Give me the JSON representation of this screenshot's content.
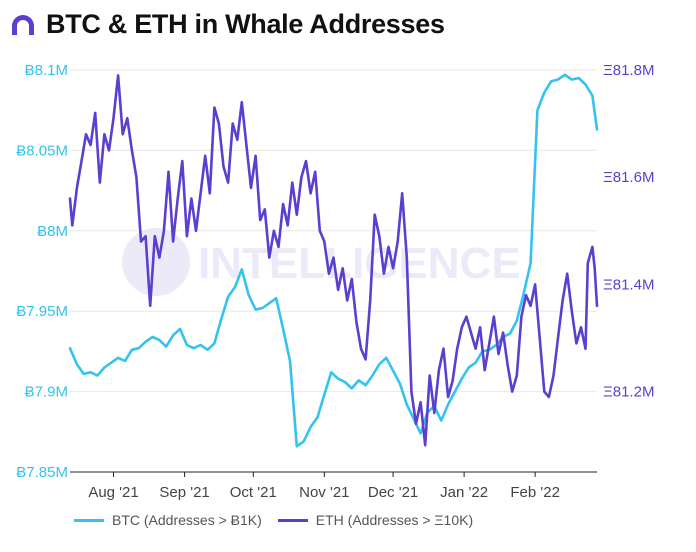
{
  "header": {
    "title": "BTC & ETH in Whale Addresses"
  },
  "colors": {
    "btc": "#33c3ee",
    "eth": "#5b3fcf",
    "grid": "#e8e8e8",
    "axis": "#222222",
    "watermark": "#eceaf8"
  },
  "watermark": "INTELLIGENCE",
  "chart_data": {
    "type": "line",
    "title": "BTC & ETH in Whale Addresses",
    "x_ticks": [
      "Aug '21",
      "Sep '21",
      "Oct '21",
      "Nov '21",
      "Dec '21",
      "Jan '22",
      "Feb '22"
    ],
    "x_range": [
      "2021-07-13",
      "2022-02-28"
    ],
    "y_left": {
      "range": [
        7.85,
        8.1
      ],
      "unit": "M",
      "prefix": "Ƀ",
      "ticks": [
        7.85,
        7.9,
        7.95,
        8.0,
        8.05,
        8.1
      ],
      "tick_labels": [
        "Ƀ7.85M",
        "Ƀ7.9M",
        "Ƀ7.95M",
        "Ƀ8M",
        "Ƀ8.05M",
        "Ƀ8.1M"
      ]
    },
    "y_right": {
      "range": [
        81.05,
        81.8
      ],
      "unit": "M",
      "prefix": "Ξ",
      "ticks": [
        81.2,
        81.4,
        81.6,
        81.8
      ],
      "tick_labels": [
        "Ξ81.2M",
        "Ξ81.4M",
        "Ξ81.6M",
        "Ξ81.8M"
      ]
    },
    "grid": "horizontal",
    "legend_position": "bottom",
    "series": [
      {
        "name": "BTC (Addresses > Ƀ1K)",
        "axis": "left",
        "points": [
          [
            "2021-07-13",
            7.927
          ],
          [
            "2021-07-16",
            7.917
          ],
          [
            "2021-07-19",
            7.911
          ],
          [
            "2021-07-22",
            7.912
          ],
          [
            "2021-07-25",
            7.91
          ],
          [
            "2021-07-28",
            7.915
          ],
          [
            "2021-07-31",
            7.918
          ],
          [
            "2021-08-03",
            7.921
          ],
          [
            "2021-08-06",
            7.919
          ],
          [
            "2021-08-09",
            7.926
          ],
          [
            "2021-08-12",
            7.927
          ],
          [
            "2021-08-15",
            7.931
          ],
          [
            "2021-08-18",
            7.934
          ],
          [
            "2021-08-21",
            7.932
          ],
          [
            "2021-08-24",
            7.928
          ],
          [
            "2021-08-27",
            7.935
          ],
          [
            "2021-08-30",
            7.939
          ],
          [
            "2021-09-02",
            7.929
          ],
          [
            "2021-09-05",
            7.927
          ],
          [
            "2021-09-08",
            7.929
          ],
          [
            "2021-09-11",
            7.926
          ],
          [
            "2021-09-14",
            7.93
          ],
          [
            "2021-09-17",
            7.945
          ],
          [
            "2021-09-20",
            7.959
          ],
          [
            "2021-09-23",
            7.965
          ],
          [
            "2021-09-26",
            7.976
          ],
          [
            "2021-09-29",
            7.96
          ],
          [
            "2021-10-02",
            7.951
          ],
          [
            "2021-10-05",
            7.952
          ],
          [
            "2021-10-08",
            7.955
          ],
          [
            "2021-10-11",
            7.958
          ],
          [
            "2021-10-14",
            7.939
          ],
          [
            "2021-10-17",
            7.919
          ],
          [
            "2021-10-20",
            7.866
          ],
          [
            "2021-10-23",
            7.869
          ],
          [
            "2021-10-26",
            7.878
          ],
          [
            "2021-10-29",
            7.884
          ],
          [
            "2021-11-01",
            7.898
          ],
          [
            "2021-11-04",
            7.912
          ],
          [
            "2021-11-07",
            7.908
          ],
          [
            "2021-11-10",
            7.906
          ],
          [
            "2021-11-13",
            7.902
          ],
          [
            "2021-11-16",
            7.907
          ],
          [
            "2021-11-19",
            7.904
          ],
          [
            "2021-11-22",
            7.91
          ],
          [
            "2021-11-25",
            7.917
          ],
          [
            "2021-11-28",
            7.921
          ],
          [
            "2021-12-01",
            7.913
          ],
          [
            "2021-12-04",
            7.905
          ],
          [
            "2021-12-07",
            7.892
          ],
          [
            "2021-12-10",
            7.883
          ],
          [
            "2021-12-13",
            7.874
          ],
          [
            "2021-12-16",
            7.887
          ],
          [
            "2021-12-19",
            7.891
          ],
          [
            "2021-12-22",
            7.882
          ],
          [
            "2021-12-25",
            7.892
          ],
          [
            "2021-12-28",
            7.9
          ],
          [
            "2021-12-31",
            7.908
          ],
          [
            "2022-01-03",
            7.915
          ],
          [
            "2022-01-06",
            7.918
          ],
          [
            "2022-01-09",
            7.925
          ],
          [
            "2022-01-12",
            7.926
          ],
          [
            "2022-01-15",
            7.929
          ],
          [
            "2022-01-18",
            7.934
          ],
          [
            "2022-01-21",
            7.936
          ],
          [
            "2022-01-24",
            7.944
          ],
          [
            "2022-01-27",
            7.961
          ],
          [
            "2022-01-30",
            7.98
          ],
          [
            "2022-02-02",
            8.075
          ],
          [
            "2022-02-05",
            8.086
          ],
          [
            "2022-02-08",
            8.093
          ],
          [
            "2022-02-11",
            8.094
          ],
          [
            "2022-02-14",
            8.097
          ],
          [
            "2022-02-17",
            8.094
          ],
          [
            "2022-02-20",
            8.095
          ],
          [
            "2022-02-23",
            8.091
          ],
          [
            "2022-02-26",
            8.084
          ],
          [
            "2022-02-28",
            8.063
          ]
        ]
      },
      {
        "name": "ETH (Addresses > Ξ10K)",
        "axis": "right",
        "points": [
          [
            "2021-07-13",
            81.56
          ],
          [
            "2021-07-14",
            81.51
          ],
          [
            "2021-07-16",
            81.58
          ],
          [
            "2021-07-18",
            81.63
          ],
          [
            "2021-07-20",
            81.68
          ],
          [
            "2021-07-22",
            81.66
          ],
          [
            "2021-07-24",
            81.72
          ],
          [
            "2021-07-26",
            81.59
          ],
          [
            "2021-07-28",
            81.68
          ],
          [
            "2021-07-30",
            81.65
          ],
          [
            "2021-08-01",
            81.71
          ],
          [
            "2021-08-03",
            81.79
          ],
          [
            "2021-08-05",
            81.68
          ],
          [
            "2021-08-07",
            81.71
          ],
          [
            "2021-08-09",
            81.65
          ],
          [
            "2021-08-11",
            81.6
          ],
          [
            "2021-08-13",
            81.48
          ],
          [
            "2021-08-15",
            81.49
          ],
          [
            "2021-08-17",
            81.36
          ],
          [
            "2021-08-19",
            81.49
          ],
          [
            "2021-08-21",
            81.45
          ],
          [
            "2021-08-23",
            81.5
          ],
          [
            "2021-08-25",
            81.61
          ],
          [
            "2021-08-27",
            81.48
          ],
          [
            "2021-08-29",
            81.56
          ],
          [
            "2021-08-31",
            81.63
          ],
          [
            "2021-09-02",
            81.49
          ],
          [
            "2021-09-04",
            81.56
          ],
          [
            "2021-09-06",
            81.5
          ],
          [
            "2021-09-08",
            81.57
          ],
          [
            "2021-09-10",
            81.64
          ],
          [
            "2021-09-12",
            81.57
          ],
          [
            "2021-09-14",
            81.73
          ],
          [
            "2021-09-16",
            81.7
          ],
          [
            "2021-09-18",
            81.62
          ],
          [
            "2021-09-20",
            81.59
          ],
          [
            "2021-09-22",
            81.7
          ],
          [
            "2021-09-24",
            81.67
          ],
          [
            "2021-09-26",
            81.74
          ],
          [
            "2021-09-28",
            81.66
          ],
          [
            "2021-09-30",
            81.58
          ],
          [
            "2021-10-02",
            81.64
          ],
          [
            "2021-10-04",
            81.52
          ],
          [
            "2021-10-06",
            81.54
          ],
          [
            "2021-10-08",
            81.45
          ],
          [
            "2021-10-10",
            81.5
          ],
          [
            "2021-10-12",
            81.47
          ],
          [
            "2021-10-14",
            81.55
          ],
          [
            "2021-10-16",
            81.51
          ],
          [
            "2021-10-18",
            81.59
          ],
          [
            "2021-10-20",
            81.53
          ],
          [
            "2021-10-22",
            81.6
          ],
          [
            "2021-10-24",
            81.63
          ],
          [
            "2021-10-26",
            81.57
          ],
          [
            "2021-10-28",
            81.61
          ],
          [
            "2021-10-30",
            81.5
          ],
          [
            "2021-11-01",
            81.48
          ],
          [
            "2021-11-03",
            81.42
          ],
          [
            "2021-11-05",
            81.45
          ],
          [
            "2021-11-07",
            81.39
          ],
          [
            "2021-11-09",
            81.43
          ],
          [
            "2021-11-11",
            81.37
          ],
          [
            "2021-11-13",
            81.41
          ],
          [
            "2021-11-15",
            81.33
          ],
          [
            "2021-11-17",
            81.28
          ],
          [
            "2021-11-19",
            81.26
          ],
          [
            "2021-11-21",
            81.37
          ],
          [
            "2021-11-23",
            81.53
          ],
          [
            "2021-11-25",
            81.49
          ],
          [
            "2021-11-27",
            81.42
          ],
          [
            "2021-11-29",
            81.47
          ],
          [
            "2021-12-01",
            81.43
          ],
          [
            "2021-12-03",
            81.48
          ],
          [
            "2021-12-05",
            81.57
          ],
          [
            "2021-12-07",
            81.45
          ],
          [
            "2021-12-09",
            81.2
          ],
          [
            "2021-12-11",
            81.14
          ],
          [
            "2021-12-13",
            81.18
          ],
          [
            "2021-12-15",
            81.1
          ],
          [
            "2021-12-17",
            81.23
          ],
          [
            "2021-12-19",
            81.16
          ],
          [
            "2021-12-21",
            81.24
          ],
          [
            "2021-12-23",
            81.28
          ],
          [
            "2021-12-25",
            81.19
          ],
          [
            "2021-12-27",
            81.22
          ],
          [
            "2021-12-29",
            81.28
          ],
          [
            "2021-12-31",
            81.32
          ],
          [
            "2022-01-02",
            81.34
          ],
          [
            "2022-01-04",
            81.31
          ],
          [
            "2022-01-06",
            81.28
          ],
          [
            "2022-01-08",
            81.32
          ],
          [
            "2022-01-10",
            81.24
          ],
          [
            "2022-01-12",
            81.29
          ],
          [
            "2022-01-14",
            81.34
          ],
          [
            "2022-01-16",
            81.27
          ],
          [
            "2022-01-18",
            81.31
          ],
          [
            "2022-01-20",
            81.25
          ],
          [
            "2022-01-22",
            81.2
          ],
          [
            "2022-01-24",
            81.23
          ],
          [
            "2022-01-26",
            81.34
          ],
          [
            "2022-01-28",
            81.38
          ],
          [
            "2022-01-30",
            81.36
          ],
          [
            "2022-02-01",
            81.4
          ],
          [
            "2022-02-03",
            81.3
          ],
          [
            "2022-02-05",
            81.2
          ],
          [
            "2022-02-07",
            81.19
          ],
          [
            "2022-02-09",
            81.23
          ],
          [
            "2022-02-11",
            81.3
          ],
          [
            "2022-02-13",
            81.37
          ],
          [
            "2022-02-15",
            81.42
          ],
          [
            "2022-02-17",
            81.35
          ],
          [
            "2022-02-19",
            81.29
          ],
          [
            "2022-02-21",
            81.32
          ],
          [
            "2022-02-23",
            81.28
          ],
          [
            "2022-02-24",
            81.44
          ],
          [
            "2022-02-26",
            81.47
          ],
          [
            "2022-02-27",
            81.43
          ],
          [
            "2022-02-28",
            81.36
          ]
        ]
      }
    ]
  }
}
